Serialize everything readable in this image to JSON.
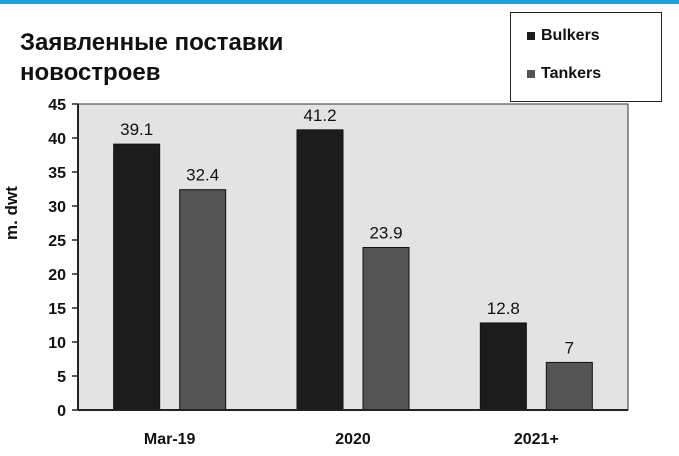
{
  "chart_data": {
    "type": "bar",
    "title": "Заявленные поставки новостроев",
    "ylabel": "m. dwt",
    "xlabel": "",
    "categories": [
      "Mar-19",
      "2020",
      "2021+"
    ],
    "series": [
      {
        "name": "Bulkers",
        "values": [
          39.1,
          41.2,
          12.8
        ],
        "color": "#1c1c1c"
      },
      {
        "name": "Tankers",
        "values": [
          32.4,
          23.9,
          7
        ],
        "color": "#545454"
      }
    ],
    "data_labels": [
      [
        "39.1",
        "32.4"
      ],
      [
        "41.2",
        "23.9"
      ],
      [
        "12.8",
        "7"
      ]
    ],
    "ylim": [
      0,
      45
    ],
    "yticks": [
      "0",
      "5",
      "10",
      "15",
      "20",
      "25",
      "30",
      "35",
      "40",
      "45"
    ],
    "grid": false,
    "legend_position": "top-right",
    "plot_background": "#e3e3e3"
  },
  "legend": {
    "bulkers": "Bulkers",
    "tankers": "Tankers"
  }
}
